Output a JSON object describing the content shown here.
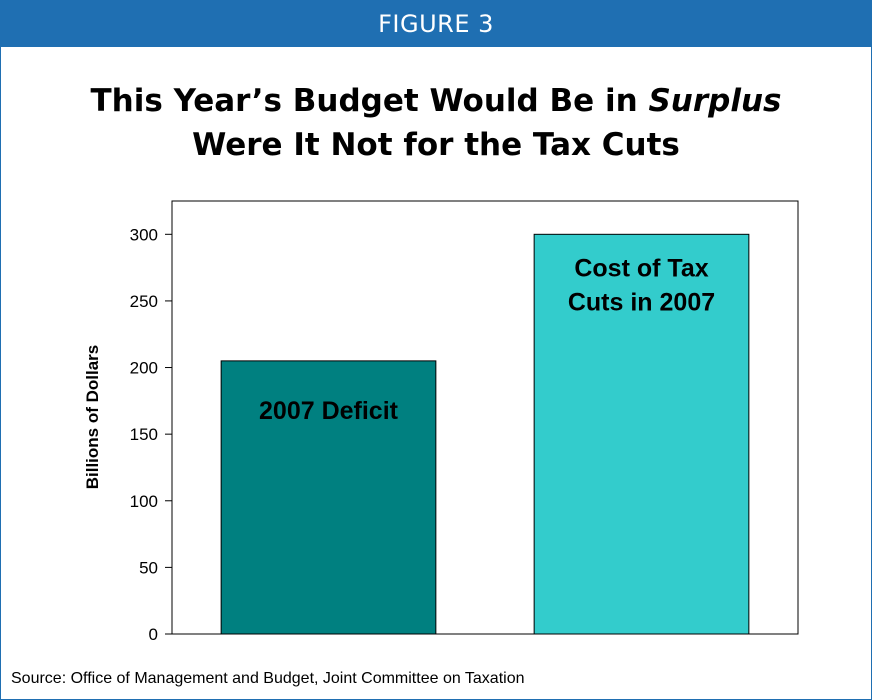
{
  "figure": {
    "header": "FIGURE 3",
    "title_part1": "This Year’s Budget Would Be in ",
    "title_emphasis": "Surplus",
    "title_line2": "Were It Not for the Tax Cuts",
    "source": "Source: Office of Management and Budget, Joint Committee on Taxation",
    "header_color": "#1f6fb2"
  },
  "chart_data": {
    "type": "bar",
    "ylabel": "Billions of Dollars",
    "xlabel": "",
    "ylim": [
      0,
      325
    ],
    "yticks": [
      0,
      50,
      100,
      150,
      200,
      250,
      300
    ],
    "grid": false,
    "legend": "none",
    "bars": [
      {
        "label_lines": [
          "2007 Deficit"
        ],
        "value": 205,
        "color": "#008080"
      },
      {
        "label_lines": [
          "Cost of Tax",
          "Cuts in 2007"
        ],
        "value": 300,
        "color": "#33cccc"
      }
    ]
  }
}
